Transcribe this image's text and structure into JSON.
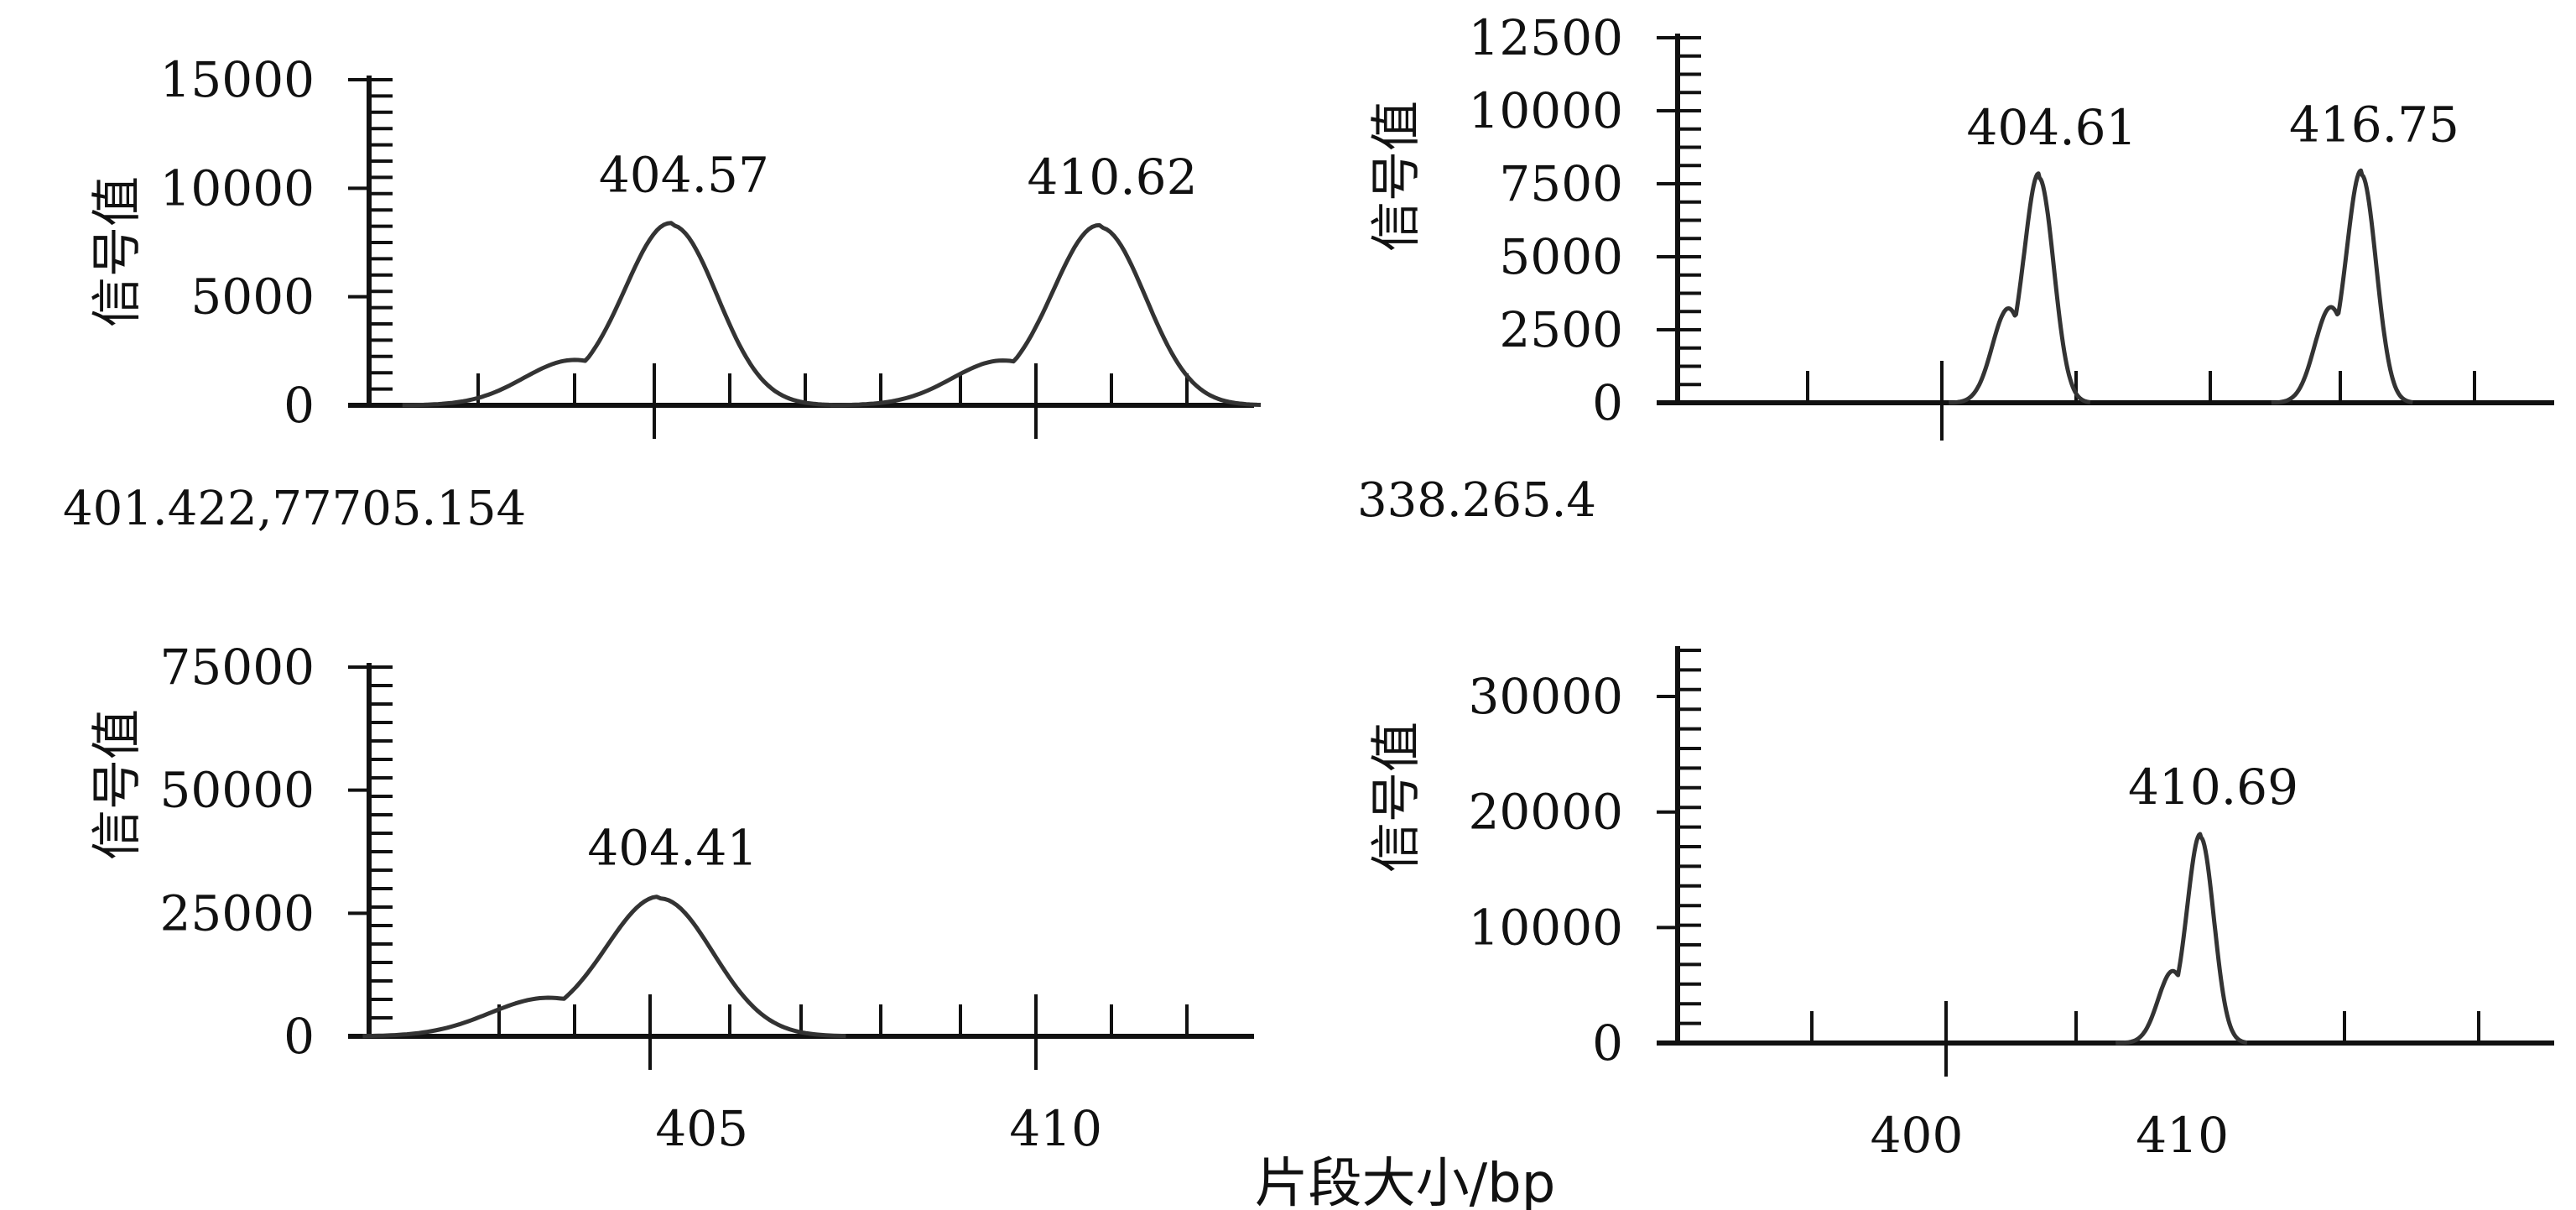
{
  "xlabel_shared": "片段大小/bp",
  "chart_data": [
    {
      "type": "line",
      "panel": "top-left",
      "ylabel": "信号值",
      "ylim": [
        0,
        15000
      ],
      "yticks": [
        0,
        5000,
        10000,
        15000
      ],
      "ytick_labels": [
        "0",
        "5000",
        "10000",
        "15000"
      ],
      "xlim": [
        400.3,
        412.8
      ],
      "xtick_labels": [],
      "note": "401.422,77705.154",
      "peaks": [
        {
          "label": "404.57",
          "x": 404.57,
          "y": 8300,
          "width": 0.65,
          "shoulder": 0.18
        },
        {
          "label": "410.62",
          "x": 410.62,
          "y": 8200,
          "width": 0.65,
          "shoulder": 0.18
        }
      ]
    },
    {
      "type": "line",
      "panel": "top-right",
      "ylabel": "信号值",
      "ylim": [
        0,
        12500
      ],
      "yticks": [
        0,
        2500,
        5000,
        7500,
        10000,
        12500
      ],
      "ytick_labels": [
        "0",
        "2500",
        "5000",
        "7500",
        "10000",
        "12500"
      ],
      "xlim": [
        391,
        424
      ],
      "xtick_labels": [],
      "note": "338.265.4",
      "peaks": [
        {
          "label": "404.61",
          "x": 404.61,
          "y": 7700,
          "width": 0.55,
          "shoulder": 0.3
        },
        {
          "label": "416.75",
          "x": 416.75,
          "y": 7800,
          "width": 0.55,
          "shoulder": 0.3
        }
      ]
    },
    {
      "type": "line",
      "panel": "bottom-left",
      "ylabel": "信号值",
      "ylim": [
        0,
        75000
      ],
      "yticks": [
        0,
        25000,
        50000,
        75000
      ],
      "ytick_labels": [
        "0",
        "25000",
        "50000",
        "75000"
      ],
      "xlim": [
        400.3,
        412.8
      ],
      "xticks": [
        405,
        410
      ],
      "xtick_labels": [
        "405",
        "410"
      ],
      "note": "",
      "peaks": [
        {
          "label": "404.41",
          "x": 404.41,
          "y": 28000,
          "width": 0.75,
          "shoulder": 0.2
        }
      ]
    },
    {
      "type": "line",
      "panel": "bottom-right",
      "ylabel": "信号值",
      "ylim": [
        0,
        34000
      ],
      "yticks": [
        0,
        10000,
        20000,
        30000
      ],
      "ytick_labels": [
        "0",
        "10000",
        "20000",
        "30000"
      ],
      "xlim": [
        391,
        424
      ],
      "xticks": [
        400,
        410
      ],
      "xtick_labels": [
        "400",
        "410"
      ],
      "note": "",
      "peaks": [
        {
          "label": "410.69",
          "x": 410.69,
          "y": 17800,
          "width": 0.5,
          "shoulder": 0.25
        }
      ]
    }
  ]
}
